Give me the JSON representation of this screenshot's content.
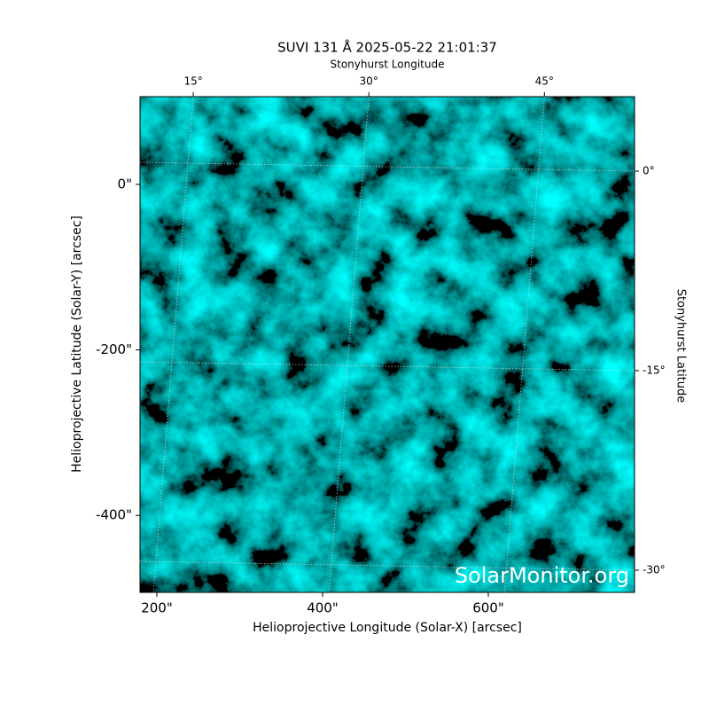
{
  "chart_data": {
    "type": "image",
    "title": "SUVI 131 Å 2025-05-22 21:01:37",
    "x_label": "Helioprojective Longitude (Solar-X) [arcsec]",
    "y_label": "Helioprojective Latitude (Solar-Y) [arcsec]",
    "x2_label": "Stonyhurst Longitude",
    "y2_label": "Stonyhurst Latitude",
    "watermark": "SolarMonitor.org",
    "xlim": [
      179.7,
      776.5
    ],
    "ylim": [
      -493,
      106
    ],
    "xticks": [
      {
        "value": 200,
        "label": "200\""
      },
      {
        "value": 400,
        "label": "400\""
      },
      {
        "value": 600,
        "label": "600\""
      }
    ],
    "yticks": [
      {
        "value": 0,
        "label": "0\""
      },
      {
        "value": -200,
        "label": "-200\""
      },
      {
        "value": -400,
        "label": "-400\""
      }
    ],
    "x2lim": [
      10.45,
      52.7
    ],
    "x2ticks": [
      {
        "value": 15,
        "label": "15°"
      },
      {
        "value": 30,
        "label": "30°"
      },
      {
        "value": 45,
        "label": "45°"
      }
    ],
    "y2lim": [
      -31.67,
      5.6
    ],
    "y2ticks": [
      {
        "value": 0,
        "label": "0°"
      },
      {
        "value": -15,
        "label": "-15°"
      },
      {
        "value": -30,
        "label": "-30°"
      }
    ],
    "grid": true
  }
}
